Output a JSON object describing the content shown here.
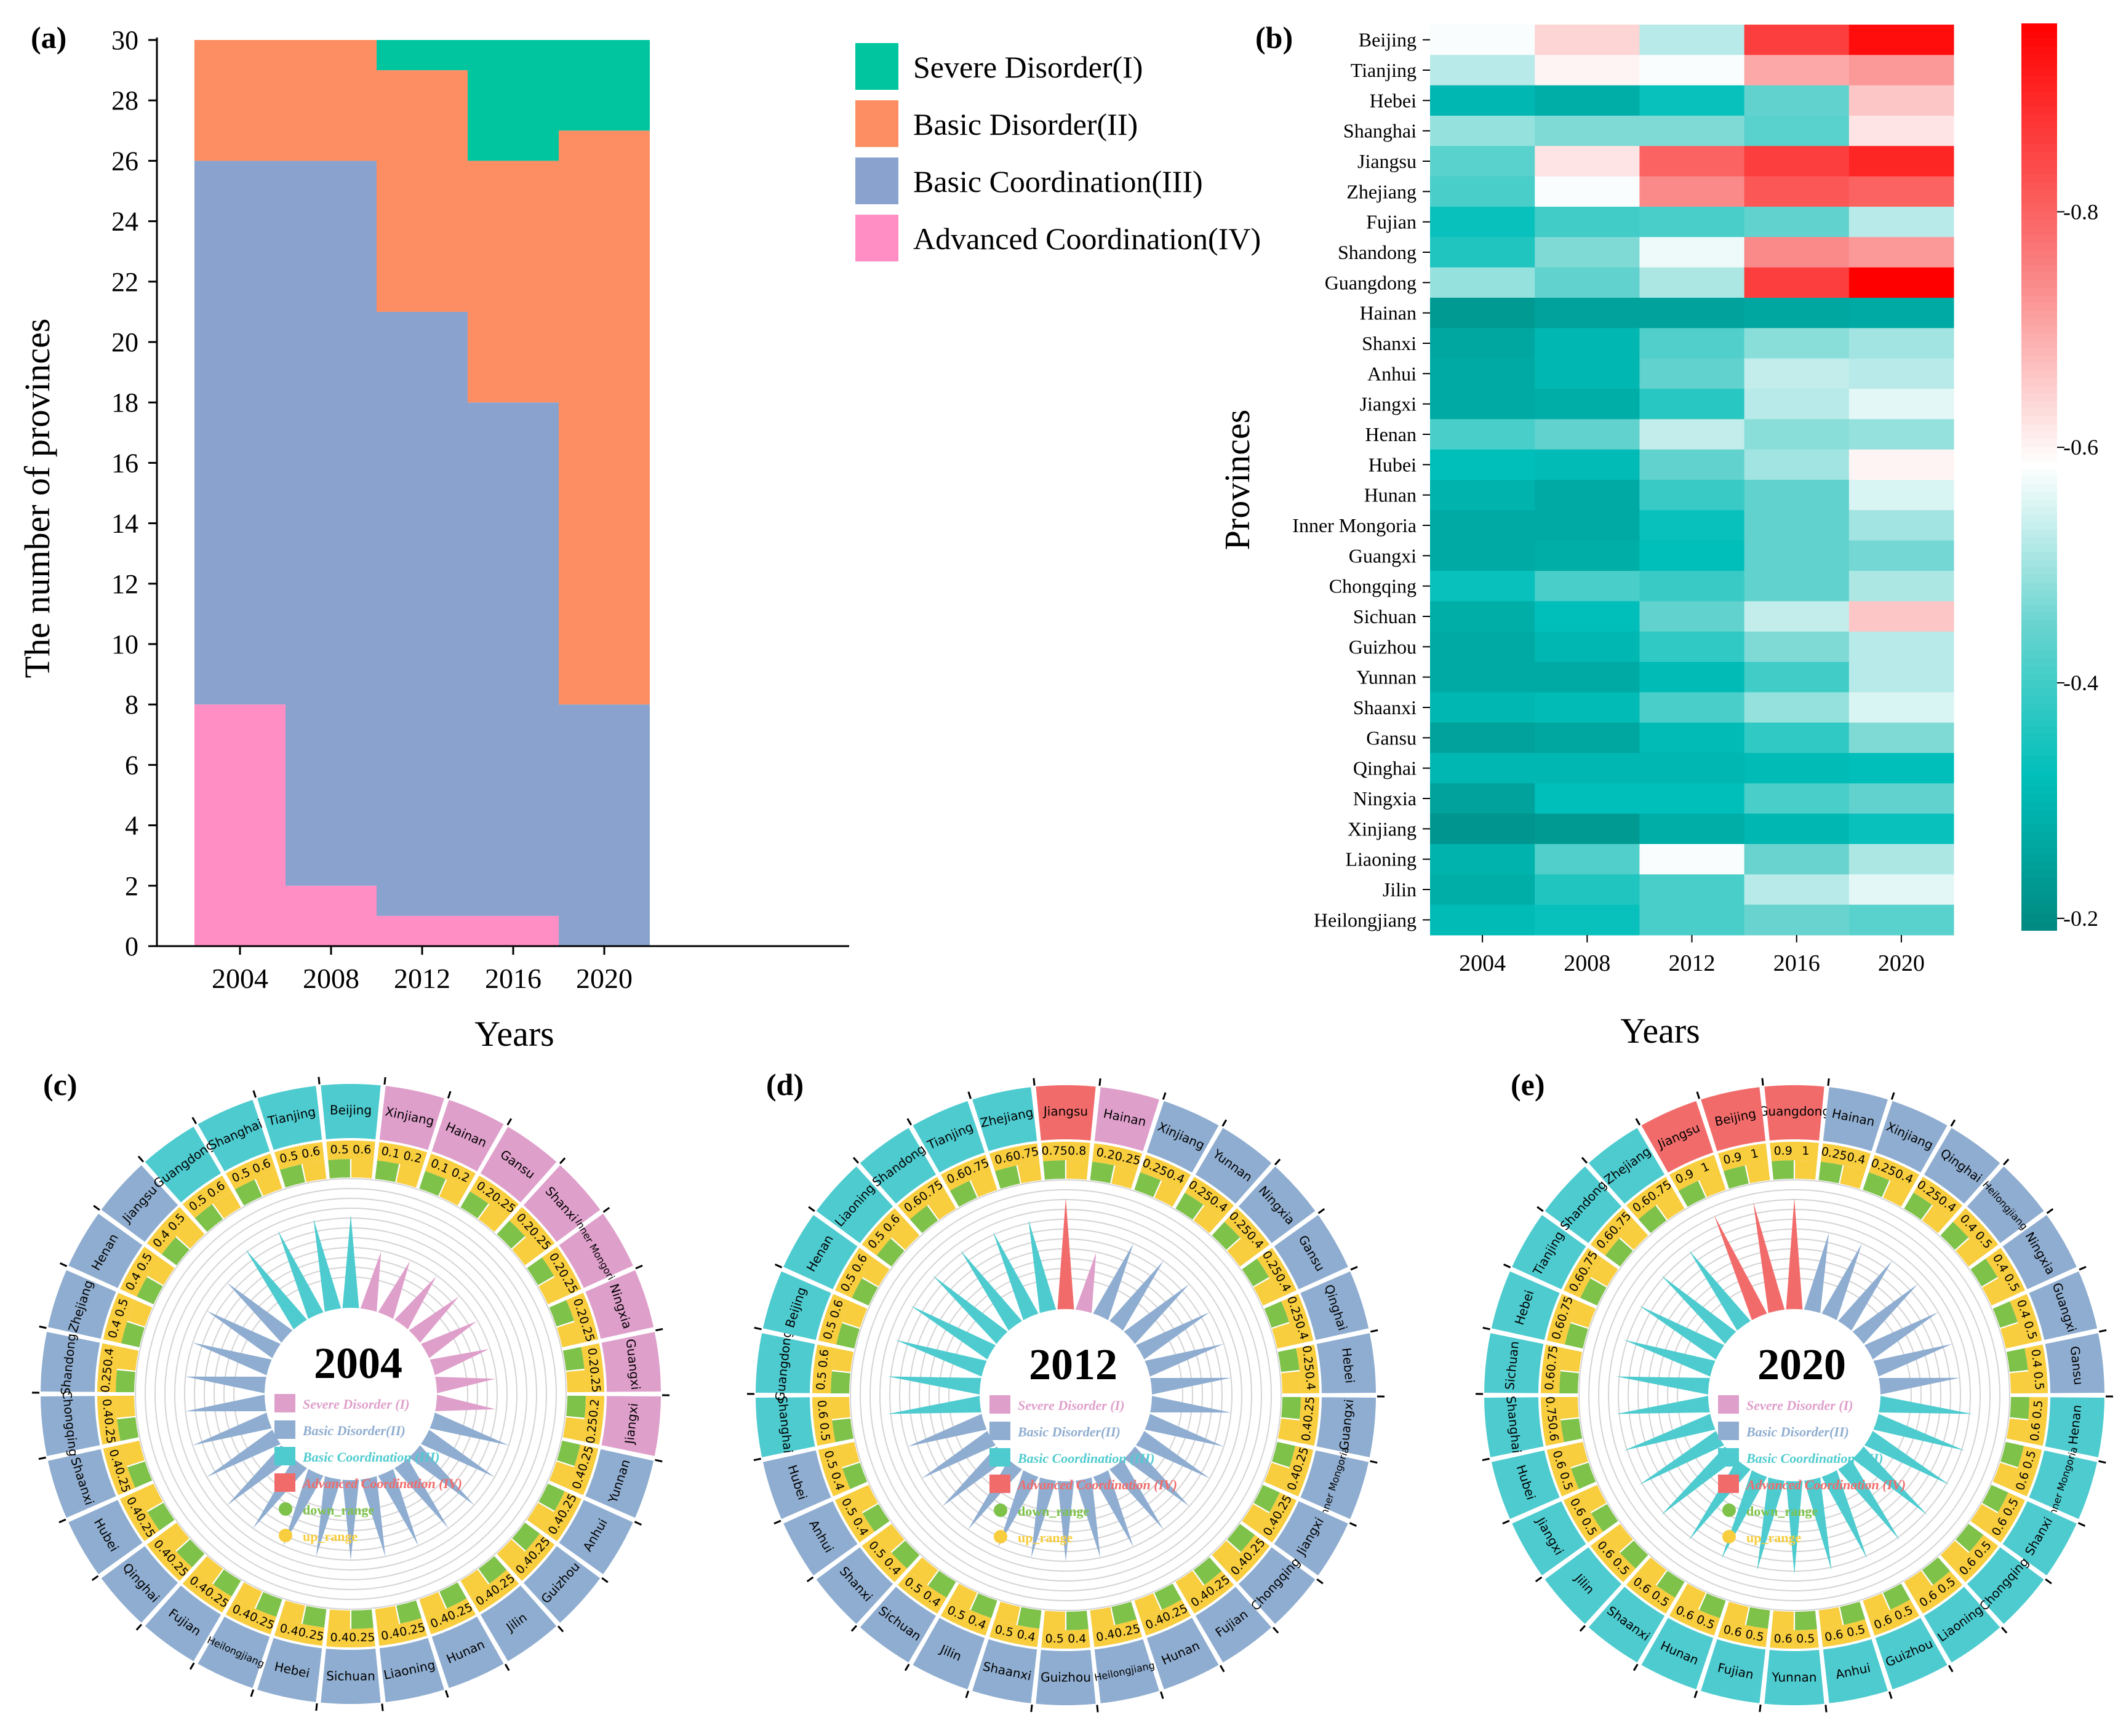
{
  "chart_data": [
    {
      "panel_label": "(a)",
      "type": "area",
      "stacked": true,
      "xlabel": "Years",
      "ylabel": "The number of provinces",
      "ylim": [
        0,
        30
      ],
      "yticks": [
        "0",
        "2",
        "4",
        "6",
        "8",
        "10",
        "12",
        "14",
        "16",
        "18",
        "20",
        "22",
        "24",
        "26",
        "28",
        "30"
      ],
      "categories": [
        "2004",
        "2008",
        "2012",
        "2016",
        "2020"
      ],
      "legend_position": "right",
      "series": [
        {
          "name": "Advanced Coordination(IV)",
          "color": "#ff8ec4",
          "values": [
            8,
            2,
            1,
            1,
            0
          ]
        },
        {
          "name": "Basic Coordination(III)",
          "color": "#8aa3ce",
          "values": [
            18,
            24,
            20,
            17,
            8
          ]
        },
        {
          "name": "Basic Disorder(II)",
          "color": "#fd8d62",
          "values": [
            4,
            4,
            8,
            8,
            19
          ]
        },
        {
          "name": "Severe Disorder(I)",
          "color": "#00c59e",
          "values": [
            0,
            0,
            1,
            4,
            3
          ]
        }
      ],
      "legend_order": [
        "Severe Disorder(I)",
        "Basic Disorder(II)",
        "Basic Coordination(III)",
        "Advanced Coordination(IV)"
      ]
    },
    {
      "panel_label": "(b)",
      "type": "heatmap",
      "xlabel": "Years",
      "ylabel": "Provinces",
      "columns": [
        "2004",
        "2008",
        "2012",
        "2016",
        "2020"
      ],
      "colorbar_ticks": [
        "0.2",
        "0.4",
        "0.6",
        "0.8"
      ],
      "colorbar_range": [
        0.19,
        0.96
      ],
      "rows": [
        {
          "name": "Beijing",
          "values": [
            0.58,
            0.64,
            0.52,
            0.86,
            0.94
          ]
        },
        {
          "name": "Tianjing",
          "values": [
            0.52,
            0.6,
            0.58,
            0.7,
            0.72
          ]
        },
        {
          "name": "Hebei",
          "values": [
            0.3,
            0.28,
            0.33,
            0.44,
            0.66
          ]
        },
        {
          "name": "Shanghai",
          "values": [
            0.49,
            0.47,
            0.47,
            0.43,
            0.62
          ]
        },
        {
          "name": "Jiangsu",
          "values": [
            0.43,
            0.62,
            0.8,
            0.86,
            0.9
          ]
        },
        {
          "name": "Zhejiang",
          "values": [
            0.41,
            0.58,
            0.74,
            0.82,
            0.8
          ]
        },
        {
          "name": "Fujian",
          "values": [
            0.33,
            0.4,
            0.41,
            0.44,
            0.52
          ]
        },
        {
          "name": "Shandong",
          "values": [
            0.36,
            0.47,
            0.57,
            0.74,
            0.72
          ]
        },
        {
          "name": "Guangdong",
          "values": [
            0.49,
            0.44,
            0.51,
            0.86,
            0.96
          ]
        },
        {
          "name": "Hainan",
          "values": [
            0.23,
            0.25,
            0.25,
            0.26,
            0.27
          ]
        },
        {
          "name": "Shanxi",
          "values": [
            0.26,
            0.3,
            0.42,
            0.48,
            0.5
          ]
        },
        {
          "name": "Anhui",
          "values": [
            0.27,
            0.3,
            0.44,
            0.53,
            0.52
          ]
        },
        {
          "name": "Jiangxi",
          "values": [
            0.27,
            0.28,
            0.37,
            0.52,
            0.56
          ]
        },
        {
          "name": "Henan",
          "values": [
            0.41,
            0.44,
            0.53,
            0.48,
            0.49
          ]
        },
        {
          "name": "Hubei",
          "values": [
            0.32,
            0.31,
            0.44,
            0.5,
            0.6
          ]
        },
        {
          "name": "Hunan",
          "values": [
            0.29,
            0.27,
            0.39,
            0.44,
            0.55
          ]
        },
        {
          "name": "Inner Mongoria",
          "values": [
            0.27,
            0.27,
            0.33,
            0.44,
            0.5
          ]
        },
        {
          "name": "Guangxi",
          "values": [
            0.27,
            0.28,
            0.32,
            0.44,
            0.46
          ]
        },
        {
          "name": "Chongqing",
          "values": [
            0.33,
            0.41,
            0.39,
            0.44,
            0.51
          ]
        },
        {
          "name": "Sichuan",
          "values": [
            0.28,
            0.32,
            0.44,
            0.53,
            0.66
          ]
        },
        {
          "name": "Guizhou",
          "values": [
            0.27,
            0.3,
            0.38,
            0.47,
            0.52
          ]
        },
        {
          "name": "Yunnan",
          "values": [
            0.27,
            0.27,
            0.31,
            0.4,
            0.52
          ]
        },
        {
          "name": "Shaanxi",
          "values": [
            0.3,
            0.31,
            0.41,
            0.49,
            0.55
          ]
        },
        {
          "name": "Gansu",
          "values": [
            0.25,
            0.26,
            0.31,
            0.38,
            0.47
          ]
        },
        {
          "name": "Qinghai",
          "values": [
            0.3,
            0.3,
            0.3,
            0.31,
            0.32
          ]
        },
        {
          "name": "Ningxia",
          "values": [
            0.25,
            0.32,
            0.32,
            0.41,
            0.44
          ]
        },
        {
          "name": "Xinjiang",
          "values": [
            0.22,
            0.23,
            0.28,
            0.3,
            0.33
          ]
        },
        {
          "name": "Liaoning",
          "values": [
            0.29,
            0.42,
            0.58,
            0.45,
            0.51
          ]
        },
        {
          "name": "Jilin",
          "values": [
            0.28,
            0.36,
            0.41,
            0.52,
            0.56
          ]
        },
        {
          "name": "Heilongjiang",
          "values": [
            0.31,
            0.33,
            0.41,
            0.45,
            0.43
          ]
        }
      ]
    },
    {
      "panel_label": "(c)",
      "type": "radial_bar",
      "center_title": "2004",
      "legend": [
        "Severe Disorder (I)",
        "Basic Disorder(II)",
        "Basic Coordination (III)",
        "Advanced Coordination (IV)",
        "down_range",
        "up_range"
      ],
      "legend_colors": [
        "#df9fcb",
        "#8fadd0",
        "#4ecbcf",
        "#f26b6b",
        "#7ec24a",
        "#f8cd3e"
      ],
      "items": [
        {
          "name": "Beijing",
          "cls": "III",
          "down": "0.5",
          "up": "0.6"
        },
        {
          "name": "Xinjiang",
          "cls": "I",
          "down": "0.1",
          "up": "0.2"
        },
        {
          "name": "Hainan",
          "cls": "I",
          "down": "0.1",
          "up": "0.2"
        },
        {
          "name": "Gansu",
          "cls": "I",
          "down": "0.2",
          "up": "0.25"
        },
        {
          "name": "Shanxi",
          "cls": "I",
          "down": "0.2",
          "up": "0.25"
        },
        {
          "name": "Inner Mongoria",
          "cls": "I",
          "down": "0.2",
          "up": "0.25"
        },
        {
          "name": "Ningxia",
          "cls": "I",
          "down": "0.2",
          "up": "0.25"
        },
        {
          "name": "Guangxi",
          "cls": "I",
          "down": "0.2",
          "up": "0.25"
        },
        {
          "name": "Jiangxi",
          "cls": "I",
          "down": "0.2",
          "up": "0.25"
        },
        {
          "name": "Yunnan",
          "cls": "II",
          "down": "0.25",
          "up": "0.4"
        },
        {
          "name": "Anhui",
          "cls": "II",
          "down": "0.25",
          "up": "0.4"
        },
        {
          "name": "Guizhou",
          "cls": "II",
          "down": "0.25",
          "up": "0.4"
        },
        {
          "name": "Jilin",
          "cls": "II",
          "down": "0.25",
          "up": "0.4"
        },
        {
          "name": "Hunan",
          "cls": "II",
          "down": "0.25",
          "up": "0.4"
        },
        {
          "name": "Liaoning",
          "cls": "II",
          "down": "0.25",
          "up": "0.4"
        },
        {
          "name": "Sichuan",
          "cls": "II",
          "down": "0.25",
          "up": "0.4"
        },
        {
          "name": "Hebei",
          "cls": "II",
          "down": "0.25",
          "up": "0.4"
        },
        {
          "name": "Heilongjiang",
          "cls": "II",
          "down": "0.25",
          "up": "0.4"
        },
        {
          "name": "Fujian",
          "cls": "II",
          "down": "0.25",
          "up": "0.4"
        },
        {
          "name": "Qinghai",
          "cls": "II",
          "down": "0.25",
          "up": "0.4"
        },
        {
          "name": "Hubei",
          "cls": "II",
          "down": "0.25",
          "up": "0.4"
        },
        {
          "name": "Shaanxi",
          "cls": "II",
          "down": "0.25",
          "up": "0.4"
        },
        {
          "name": "Chongqing",
          "cls": "II",
          "down": "0.25",
          "up": "0.4"
        },
        {
          "name": "Shandong",
          "cls": "II",
          "down": "0.25",
          "up": "0.4"
        },
        {
          "name": "Zhejiang",
          "cls": "II",
          "down": "0.4",
          "up": "0.5"
        },
        {
          "name": "Henan",
          "cls": "II",
          "down": "0.4",
          "up": "0.5"
        },
        {
          "name": "Jiangsu",
          "cls": "II",
          "down": "0.4",
          "up": "0.5"
        },
        {
          "name": "Guangdong",
          "cls": "III",
          "down": "0.5",
          "up": "0.6"
        },
        {
          "name": "Shanghai",
          "cls": "III",
          "down": "0.5",
          "up": "0.6"
        },
        {
          "name": "Tianjing",
          "cls": "III",
          "down": "0.5",
          "up": "0.6"
        }
      ]
    },
    {
      "panel_label": "(d)",
      "type": "radial_bar",
      "center_title": "2012",
      "legend": [
        "Severe Disorder (I)",
        "Basic Disorder(II)",
        "Basic Coordination (III)",
        "Advanced Coordination (IV)",
        "down_range",
        "up_range"
      ],
      "legend_colors": [
        "#df9fcb",
        "#8fadd0",
        "#4ecbcf",
        "#f26b6b",
        "#7ec24a",
        "#f8cd3e"
      ],
      "items": [
        {
          "name": "Jiangsu",
          "cls": "IV",
          "down": "0.75",
          "up": "0.8"
        },
        {
          "name": "Hainan",
          "cls": "I",
          "down": "0.2",
          "up": "0.25"
        },
        {
          "name": "Xinjiang",
          "cls": "II",
          "down": "0.25",
          "up": "0.4"
        },
        {
          "name": "Yunnan",
          "cls": "II",
          "down": "0.25",
          "up": "0.4"
        },
        {
          "name": "Ningxia",
          "cls": "II",
          "down": "0.25",
          "up": "0.4"
        },
        {
          "name": "Gansu",
          "cls": "II",
          "down": "0.25",
          "up": "0.4"
        },
        {
          "name": "Qinghai",
          "cls": "II",
          "down": "0.25",
          "up": "0.4"
        },
        {
          "name": "Hebei",
          "cls": "II",
          "down": "0.25",
          "up": "0.4"
        },
        {
          "name": "Guangxi",
          "cls": "II",
          "down": "0.25",
          "up": "0.4"
        },
        {
          "name": "Inner Mongoria",
          "cls": "II",
          "down": "0.25",
          "up": "0.4"
        },
        {
          "name": "Jiangxi",
          "cls": "II",
          "down": "0.25",
          "up": "0.4"
        },
        {
          "name": "Chongqing",
          "cls": "II",
          "down": "0.25",
          "up": "0.4"
        },
        {
          "name": "Fujian",
          "cls": "II",
          "down": "0.25",
          "up": "0.4"
        },
        {
          "name": "Hunan",
          "cls": "II",
          "down": "0.25",
          "up": "0.4"
        },
        {
          "name": "Heilongjiang",
          "cls": "II",
          "down": "0.25",
          "up": "0.4"
        },
        {
          "name": "Guizhou",
          "cls": "II",
          "down": "0.4",
          "up": "0.5"
        },
        {
          "name": "Shaanxi",
          "cls": "II",
          "down": "0.4",
          "up": "0.5"
        },
        {
          "name": "Jilin",
          "cls": "II",
          "down": "0.4",
          "up": "0.5"
        },
        {
          "name": "Sichuan",
          "cls": "II",
          "down": "0.4",
          "up": "0.5"
        },
        {
          "name": "Shanxi",
          "cls": "II",
          "down": "0.4",
          "up": "0.5"
        },
        {
          "name": "Anhui",
          "cls": "II",
          "down": "0.4",
          "up": "0.5"
        },
        {
          "name": "Hubei",
          "cls": "II",
          "down": "0.4",
          "up": "0.5"
        },
        {
          "name": "Shanghai",
          "cls": "III",
          "down": "0.5",
          "up": "0.6"
        },
        {
          "name": "Guangdong",
          "cls": "III",
          "down": "0.5",
          "up": "0.6"
        },
        {
          "name": "Beijing",
          "cls": "III",
          "down": "0.5",
          "up": "0.6"
        },
        {
          "name": "Henan",
          "cls": "III",
          "down": "0.5",
          "up": "0.6"
        },
        {
          "name": "Liaoning",
          "cls": "III",
          "down": "0.5",
          "up": "0.6"
        },
        {
          "name": "Shandong",
          "cls": "III",
          "down": "0.6",
          "up": "0.75"
        },
        {
          "name": "Tianjing",
          "cls": "III",
          "down": "0.6",
          "up": "0.75"
        },
        {
          "name": "Zhejiang",
          "cls": "III",
          "down": "0.6",
          "up": "0.75"
        }
      ]
    },
    {
      "panel_label": "(e)",
      "type": "radial_bar",
      "center_title": "2020",
      "legend": [
        "Severe Disorder (I)",
        "Basic Disorder(II)",
        "Basic Coordination (III)",
        "Advanced Coordination (IV)",
        "down_range",
        "up_range"
      ],
      "legend_colors": [
        "#df9fcb",
        "#8fadd0",
        "#4ecbcf",
        "#f26b6b",
        "#7ec24a",
        "#f8cd3e"
      ],
      "items": [
        {
          "name": "Guangdong",
          "cls": "IV",
          "down": "0.9",
          "up": "1"
        },
        {
          "name": "Hainan",
          "cls": "II",
          "down": "0.25",
          "up": "0.4"
        },
        {
          "name": "Xinjiang",
          "cls": "II",
          "down": "0.25",
          "up": "0.4"
        },
        {
          "name": "Qinghai",
          "cls": "II",
          "down": "0.25",
          "up": "0.4"
        },
        {
          "name": "Heilongjiang",
          "cls": "II",
          "down": "0.4",
          "up": "0.5"
        },
        {
          "name": "Ningxia",
          "cls": "II",
          "down": "0.4",
          "up": "0.5"
        },
        {
          "name": "Guangxi",
          "cls": "II",
          "down": "0.4",
          "up": "0.5"
        },
        {
          "name": "Gansu",
          "cls": "II",
          "down": "0.4",
          "up": "0.5"
        },
        {
          "name": "Henan",
          "cls": "III",
          "down": "0.5",
          "up": "0.6"
        },
        {
          "name": "Inner Mongoria",
          "cls": "III",
          "down": "0.5",
          "up": "0.6"
        },
        {
          "name": "Shanxi",
          "cls": "III",
          "down": "0.5",
          "up": "0.6"
        },
        {
          "name": "Chongqing",
          "cls": "III",
          "down": "0.5",
          "up": "0.6"
        },
        {
          "name": "Liaoning",
          "cls": "III",
          "down": "0.5",
          "up": "0.6"
        },
        {
          "name": "Guizhou",
          "cls": "III",
          "down": "0.5",
          "up": "0.6"
        },
        {
          "name": "Anhui",
          "cls": "III",
          "down": "0.5",
          "up": "0.6"
        },
        {
          "name": "Yunnan",
          "cls": "III",
          "down": "0.5",
          "up": "0.6"
        },
        {
          "name": "Fujian",
          "cls": "III",
          "down": "0.5",
          "up": "0.6"
        },
        {
          "name": "Hunan",
          "cls": "III",
          "down": "0.5",
          "up": "0.6"
        },
        {
          "name": "Shaanxi",
          "cls": "III",
          "down": "0.5",
          "up": "0.6"
        },
        {
          "name": "Jilin",
          "cls": "III",
          "down": "0.5",
          "up": "0.6"
        },
        {
          "name": "Jiangxi",
          "cls": "III",
          "down": "0.5",
          "up": "0.6"
        },
        {
          "name": "Hubei",
          "cls": "III",
          "down": "0.5",
          "up": "0.6"
        },
        {
          "name": "Shanghai",
          "cls": "III",
          "down": "0.6",
          "up": "0.75"
        },
        {
          "name": "Sichuan",
          "cls": "III",
          "down": "0.6",
          "up": "0.75"
        },
        {
          "name": "Hebei",
          "cls": "III",
          "down": "0.6",
          "up": "0.75"
        },
        {
          "name": "Tianjing",
          "cls": "III",
          "down": "0.6",
          "up": "0.75"
        },
        {
          "name": "Shandong",
          "cls": "III",
          "down": "0.6",
          "up": "0.75"
        },
        {
          "name": "Zhejiang",
          "cls": "III",
          "down": "0.6",
          "up": "0.75"
        },
        {
          "name": "Jiangsu",
          "cls": "IV",
          "down": "0.9",
          "up": "1"
        },
        {
          "name": "Beijing",
          "cls": "IV",
          "down": "0.9",
          "up": "1"
        }
      ]
    }
  ],
  "colors": {
    "class_I": "#df9fcb",
    "class_II": "#8fadd0",
    "class_III": "#4ecbcf",
    "class_IV": "#f26b6b",
    "down_range": "#7ec24a",
    "up_range": "#f8cd3e"
  }
}
